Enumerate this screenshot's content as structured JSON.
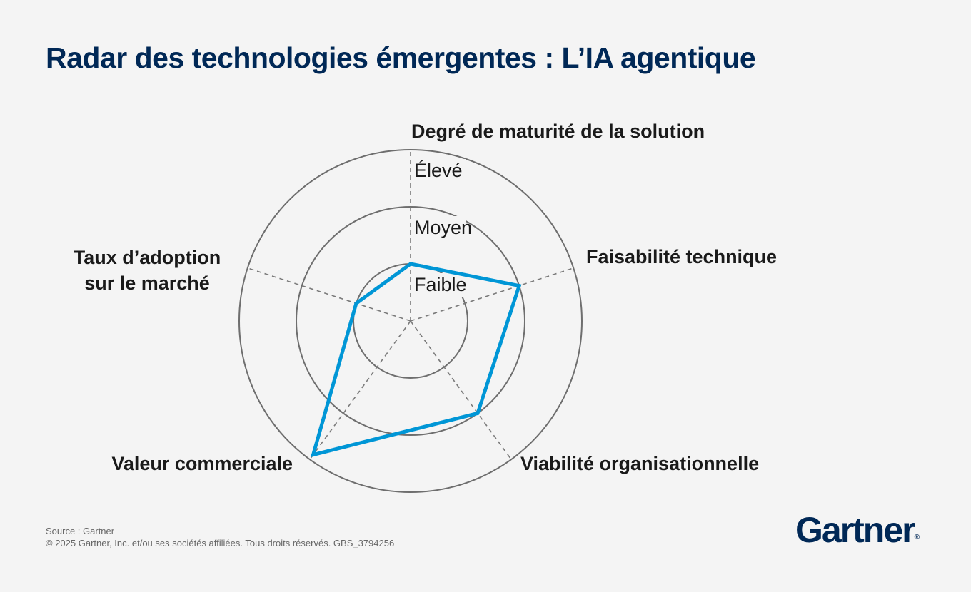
{
  "title": "Radar des technologies émergentes : L’IA agentique",
  "footer": {
    "source": "Source : Gartner",
    "copyright": "© 2025 Gartner, Inc. et/ou ses sociétés affiliées. Tous droits réservés. GBS_3794256"
  },
  "logo": {
    "text": "Gartner",
    "mark": "®"
  },
  "chart_data": {
    "type": "radar",
    "axes": [
      {
        "lines": [
          "Degré de maturité de la solution"
        ]
      },
      {
        "lines": [
          "Faisabilité technique"
        ]
      },
      {
        "lines": [
          "Viabilité organisationnelle"
        ]
      },
      {
        "lines": [
          "Valeur commerciale"
        ]
      },
      {
        "lines": [
          "Taux d’adoption",
          "sur le marché"
        ]
      }
    ],
    "levels": [
      "Faible",
      "Moyen",
      "Élevé"
    ],
    "scale": [
      0,
      3
    ],
    "series": [
      {
        "values": [
          1.0,
          2.0,
          2.0,
          2.9,
          1.0
        ],
        "color": "#0096d6"
      }
    ],
    "colors": {
      "rings": "#6e6e6e",
      "spokes": "#7a7a7a",
      "series": "#0096d6"
    },
    "grid": true,
    "legend": "none"
  }
}
